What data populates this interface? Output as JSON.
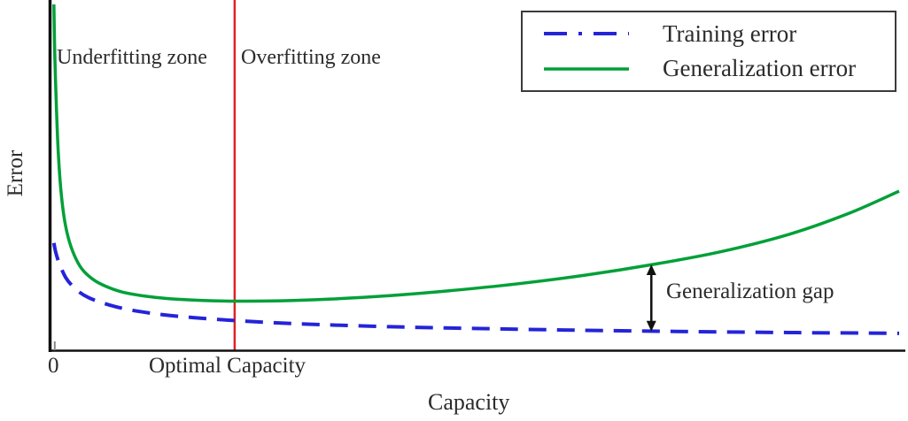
{
  "figure": {
    "ylabel": "Error",
    "xlabel": "Capacity",
    "x_tick_zero": "0",
    "optimal_capacity_label": "Optimal Capacity",
    "underfitting_label": "Underfitting zone",
    "overfitting_label": "Overfitting zone",
    "gap_label": "Generalization gap"
  },
  "legend": {
    "items": [
      {
        "label": "Training error",
        "color": "#2424d8",
        "style": "dashed"
      },
      {
        "label": "Generalization error",
        "color": "#00a038",
        "style": "solid"
      }
    ]
  },
  "colors": {
    "axis": "#111111",
    "vline": "#e02020",
    "arrow": "#111111",
    "tick": "#888888"
  },
  "chart_data": {
    "type": "line",
    "title": "",
    "xlabel": "Capacity",
    "ylabel": "Error",
    "xlim": [
      0,
      1
    ],
    "ylim": [
      0,
      1
    ],
    "grid": false,
    "legend_position": "upper right",
    "x_ticks": [
      {
        "pos": 0.005,
        "label": "0"
      },
      {
        "pos": 0.2,
        "label": "Optimal Capacity"
      }
    ],
    "annotations": [
      "Underfitting zone",
      "Overfitting zone",
      "Generalization gap"
    ],
    "vline": {
      "x": 0.217,
      "color": "#e02020",
      "label": "Optimal Capacity"
    },
    "gap_arrow": {
      "x": 0.708,
      "y_from": 0.0545,
      "y_to": 0.248
    },
    "series": [
      {
        "name": "Training error",
        "color": "#2424d8",
        "dash": true,
        "x": [
          0.004,
          0.006,
          0.009,
          0.013,
          0.018,
          0.025,
          0.034,
          0.045,
          0.06,
          0.08,
          0.105,
          0.135,
          0.17,
          0.21,
          0.26,
          0.32,
          0.4,
          0.5,
          0.62,
          0.75,
          0.88,
          1.0
        ],
        "y": [
          0.31,
          0.285,
          0.26,
          0.235,
          0.21,
          0.188,
          0.168,
          0.152,
          0.138,
          0.124,
          0.112,
          0.102,
          0.094,
          0.087,
          0.08,
          0.074,
          0.068,
          0.063,
          0.058,
          0.054,
          0.051,
          0.049
        ]
      },
      {
        "name": "Generalization error",
        "color": "#00a038",
        "dash": false,
        "x": [
          0.004,
          0.005,
          0.007,
          0.009,
          0.012,
          0.016,
          0.021,
          0.028,
          0.037,
          0.05,
          0.065,
          0.085,
          0.11,
          0.14,
          0.18,
          0.22,
          0.27,
          0.33,
          0.4,
          0.47,
          0.55,
          0.63,
          0.71,
          0.79,
          0.87,
          0.94,
          1.0
        ],
        "y": [
          1.0,
          0.86,
          0.7,
          0.58,
          0.47,
          0.385,
          0.325,
          0.275,
          0.235,
          0.205,
          0.185,
          0.168,
          0.157,
          0.149,
          0.144,
          0.142,
          0.143,
          0.148,
          0.158,
          0.172,
          0.192,
          0.217,
          0.248,
          0.285,
          0.335,
          0.395,
          0.46
        ]
      }
    ]
  }
}
